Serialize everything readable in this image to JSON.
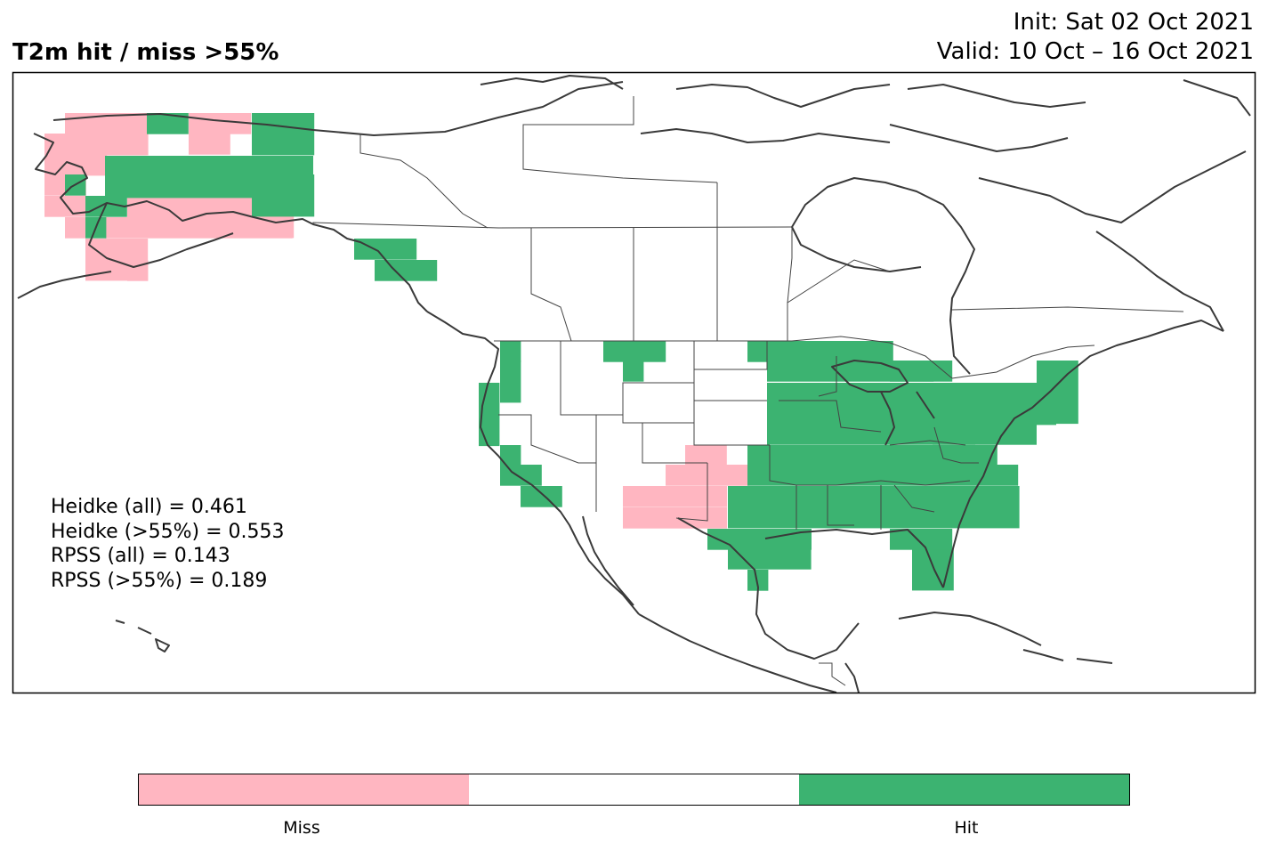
{
  "header": {
    "title": "T2m hit / miss  >55%",
    "init": "Init: Sat 02 Oct 2021",
    "valid": "Valid: 10 Oct – 16 Oct 2021"
  },
  "colors": {
    "hit": "#3cb371",
    "miss": "#ffb6c1",
    "neutral": "#ffffff",
    "border": "#3a3a3a"
  },
  "scores": [
    "Heidke (all) = 0.461",
    "Heidke (>55%) = 0.553",
    "RPSS (all) = 0.143",
    "RPSS (>55%) = 0.189"
  ],
  "colorbar": {
    "segments": [
      "miss",
      "neutral",
      "hit"
    ],
    "labels": {
      "miss": "Miss",
      "hit": "Hit"
    }
  }
}
